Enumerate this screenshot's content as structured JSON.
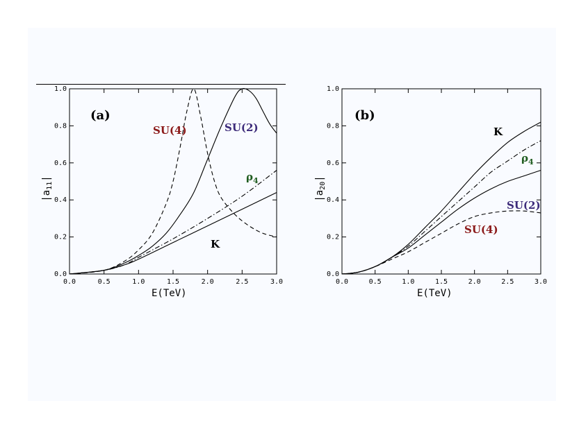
{
  "chart_data": [
    {
      "type": "line",
      "panel_label": "(a)",
      "xlabel": "E(TeV)",
      "ylabel_main": "|a",
      "ylabel_sub": "11",
      "ylabel_end": "|",
      "xlim": [
        0.0,
        3.0
      ],
      "ylim": [
        0.0,
        1.0
      ],
      "xticks": [
        "0.0",
        "0.5",
        "1.0",
        "1.5",
        "2.0",
        "2.5",
        "3.0"
      ],
      "yticks": [
        "0.0",
        "0.2",
        "0.4",
        "0.6",
        "0.8",
        "1.0"
      ],
      "series": [
        {
          "name": "SU(4)",
          "style": "dashed",
          "label_color": "#8b1a1a",
          "x": [
            0.0,
            0.5,
            0.8,
            1.0,
            1.2,
            1.4,
            1.5,
            1.6,
            1.7,
            1.8,
            1.9,
            2.0,
            2.1,
            2.2,
            2.4,
            2.6,
            2.8,
            3.0
          ],
          "y": [
            0.0,
            0.02,
            0.07,
            0.13,
            0.22,
            0.38,
            0.5,
            0.68,
            0.88,
            1.0,
            0.85,
            0.65,
            0.5,
            0.41,
            0.32,
            0.26,
            0.22,
            0.2
          ]
        },
        {
          "name": "SU(2)",
          "style": "solid",
          "label_color": "#3d2b7a",
          "x": [
            0.0,
            0.5,
            0.8,
            1.0,
            1.2,
            1.4,
            1.6,
            1.8,
            2.0,
            2.2,
            2.4,
            2.5,
            2.6,
            2.7,
            2.8,
            2.9,
            3.0
          ],
          "y": [
            0.0,
            0.02,
            0.06,
            0.1,
            0.15,
            0.22,
            0.32,
            0.44,
            0.62,
            0.8,
            0.96,
            1.0,
            0.99,
            0.95,
            0.88,
            0.81,
            0.76
          ]
        },
        {
          "name": "ρ4",
          "style": "dashdot",
          "label_color": "#1f5c1f",
          "x": [
            0.0,
            0.5,
            0.8,
            1.0,
            1.5,
            2.0,
            2.5,
            3.0
          ],
          "y": [
            0.0,
            0.02,
            0.05,
            0.09,
            0.19,
            0.3,
            0.42,
            0.56
          ]
        },
        {
          "name": "K",
          "style": "solid",
          "label_color": "#000000",
          "x": [
            0.0,
            0.5,
            0.8,
            1.0,
            1.5,
            2.0,
            2.5,
            3.0
          ],
          "y": [
            0.0,
            0.02,
            0.05,
            0.08,
            0.17,
            0.26,
            0.35,
            0.44
          ]
        }
      ]
    },
    {
      "type": "line",
      "panel_label": "(b)",
      "xlabel": "E(TeV)",
      "ylabel_main": "|a",
      "ylabel_sub": "20",
      "ylabel_end": "|",
      "xlim": [
        0.0,
        3.0
      ],
      "ylim": [
        0.0,
        1.0
      ],
      "xticks": [
        "0.0",
        "0.5",
        "1.0",
        "1.5",
        "2.0",
        "2.5",
        "3.0"
      ],
      "yticks": [
        "0.0",
        "0.2",
        "0.4",
        "0.6",
        "0.8",
        "1.0"
      ],
      "series": [
        {
          "name": "K",
          "style": "solid",
          "label_color": "#000000",
          "x": [
            0.0,
            0.25,
            0.5,
            0.75,
            1.0,
            1.25,
            1.5,
            1.75,
            2.0,
            2.25,
            2.5,
            2.75,
            3.0
          ],
          "y": [
            0.0,
            0.01,
            0.04,
            0.09,
            0.16,
            0.25,
            0.34,
            0.44,
            0.54,
            0.63,
            0.71,
            0.77,
            0.82
          ]
        },
        {
          "name": "ρ4",
          "style": "dashdot",
          "label_color": "#1f5c1f",
          "x": [
            0.0,
            0.25,
            0.5,
            0.75,
            1.0,
            1.25,
            1.5,
            1.75,
            2.0,
            2.25,
            2.5,
            2.75,
            3.0
          ],
          "y": [
            0.0,
            0.01,
            0.04,
            0.09,
            0.15,
            0.23,
            0.31,
            0.39,
            0.47,
            0.55,
            0.61,
            0.67,
            0.72
          ]
        },
        {
          "name": "SU(2)",
          "style": "solid",
          "label_color": "#3d2b7a",
          "x": [
            0.0,
            0.25,
            0.5,
            0.75,
            1.0,
            1.25,
            1.5,
            1.75,
            2.0,
            2.25,
            2.5,
            2.75,
            3.0
          ],
          "y": [
            0.0,
            0.01,
            0.04,
            0.09,
            0.14,
            0.21,
            0.28,
            0.35,
            0.41,
            0.46,
            0.5,
            0.53,
            0.56
          ]
        },
        {
          "name": "SU(4)",
          "style": "dashed",
          "label_color": "#8b1a1a",
          "x": [
            0.0,
            0.25,
            0.5,
            0.75,
            1.0,
            1.25,
            1.5,
            1.75,
            2.0,
            2.25,
            2.5,
            2.75,
            3.0
          ],
          "y": [
            0.0,
            0.01,
            0.04,
            0.08,
            0.12,
            0.17,
            0.22,
            0.27,
            0.31,
            0.33,
            0.34,
            0.34,
            0.33
          ]
        }
      ]
    }
  ]
}
